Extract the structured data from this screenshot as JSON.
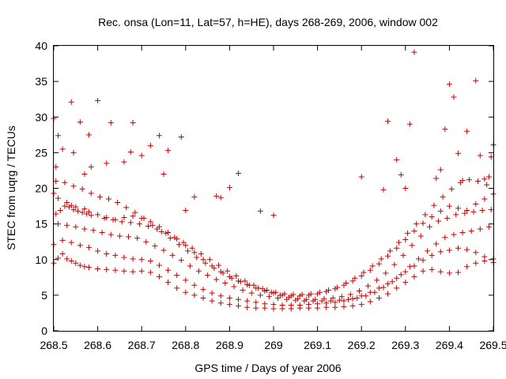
{
  "chart_data": {
    "type": "scatter",
    "title": "Rec. onsa (Lon=11, Lat=57, h=HE), days 268-269, 2006, window 002",
    "xlabel": "GPS time / Days of year 2006",
    "ylabel": "STEC from uqrg / TECUs",
    "xlim": [
      268.5,
      269.5
    ],
    "ylim": [
      0,
      40
    ],
    "xticks": [
      268.5,
      268.6,
      268.7,
      268.8,
      268.9,
      269,
      269.1,
      269.2,
      269.3,
      269.4,
      269.5
    ],
    "xtick_labels": [
      "268.5",
      "268.6",
      "268.7",
      "268.8",
      "268.9",
      "269",
      "269.1",
      "269.2",
      "269.3",
      "269.4",
      "269.5"
    ],
    "yticks": [
      0,
      5,
      10,
      15,
      20,
      25,
      30,
      35,
      40
    ],
    "ytick_labels": [
      "0",
      "5",
      "10",
      "15",
      "20",
      "25",
      "30",
      "35",
      "40"
    ],
    "grid": false,
    "legend": false,
    "marker": "plus",
    "color": "#cc0000",
    "series": [
      {
        "x": [
          268.5,
          268.51,
          268.52,
          268.53,
          268.54,
          268.55,
          268.56,
          268.57,
          268.58,
          268.6,
          268.62,
          268.64,
          268.66,
          268.68,
          268.7,
          268.72,
          268.74,
          268.76,
          268.78,
          268.8,
          268.82,
          268.84,
          268.86,
          268.88,
          268.9,
          268.92,
          268.94,
          268.96,
          268.98,
          269.0,
          269.02,
          269.04,
          269.06,
          269.08,
          269.1,
          269.12,
          269.14,
          269.16,
          269.18,
          269.2,
          269.22,
          269.24,
          269.26,
          269.28,
          269.3,
          269.32,
          269.34,
          269.36,
          269.38,
          269.4,
          269.42,
          269.44,
          269.46,
          269.48,
          269.5,
          268.5,
          268.52,
          268.54,
          268.56,
          268.58,
          268.6,
          268.62,
          268.64,
          268.66,
          268.68,
          268.7,
          268.72,
          268.74,
          268.76,
          268.78,
          268.8,
          268.82,
          268.84,
          268.86,
          268.88,
          268.9,
          268.92,
          268.94,
          268.96,
          268.98,
          269.0,
          269.02,
          269.04,
          269.06,
          269.08,
          269.1,
          269.12,
          269.14,
          269.16,
          269.18,
          269.2,
          269.22,
          269.24,
          269.26,
          269.28,
          269.3,
          269.32,
          269.34,
          269.36,
          269.38,
          269.4,
          269.42,
          269.44,
          269.46,
          269.48,
          269.5,
          268.51,
          268.53,
          268.55,
          268.57,
          268.59,
          268.61,
          268.63,
          268.65,
          268.67,
          268.69,
          268.71,
          268.73,
          268.75,
          268.77,
          268.79,
          268.81,
          268.83,
          268.85,
          268.87,
          268.89,
          268.91,
          268.93,
          268.95,
          268.97,
          268.99,
          269.01,
          269.03,
          269.05,
          269.07,
          269.09,
          269.11,
          269.13,
          269.15,
          269.17,
          269.19,
          269.21,
          269.23,
          269.25,
          269.27,
          269.29,
          269.31,
          269.33,
          269.35,
          269.37,
          269.39,
          269.41,
          269.43,
          269.45,
          269.47,
          269.49,
          268.505,
          268.515,
          268.525,
          268.535,
          268.545,
          268.555,
          268.565,
          268.575,
          268.585,
          268.615,
          268.635,
          268.655,
          268.675,
          268.695,
          268.715,
          268.735,
          268.755,
          268.775,
          268.795,
          268.815,
          268.835,
          268.855,
          268.875,
          268.895,
          268.915,
          268.935,
          268.955,
          268.975,
          268.995,
          269.015,
          269.035,
          269.055,
          269.075,
          269.095,
          269.115,
          269.135,
          269.155,
          269.175,
          269.195,
          269.215,
          269.235,
          269.255,
          269.275,
          269.295,
          269.315,
          269.335,
          269.355,
          269.375,
          269.395,
          269.415,
          269.435,
          269.455,
          269.475,
          269.495,
          268.5,
          268.51,
          268.53,
          268.54,
          268.55,
          268.57,
          268.58,
          268.6,
          268.62,
          268.64,
          268.66,
          268.68,
          268.7,
          268.72,
          268.74,
          268.76,
          268.78,
          268.8,
          268.82,
          268.84,
          268.86,
          268.88,
          268.9,
          268.92,
          268.94,
          268.96,
          268.98,
          269.0,
          269.02,
          269.04,
          269.06,
          269.08,
          269.1,
          269.12,
          269.14,
          269.16,
          269.18,
          269.2,
          269.22,
          269.24,
          269.26,
          269.28,
          269.3,
          269.32,
          269.34,
          269.36,
          269.38,
          269.4,
          269.42,
          269.44,
          269.46,
          269.48,
          269.5,
          268.505,
          268.525,
          268.545,
          268.565,
          268.585,
          268.605,
          268.625,
          268.645,
          268.665,
          268.685,
          268.705,
          268.725,
          268.745,
          268.765,
          268.785,
          268.805,
          268.825,
          268.845,
          268.865,
          268.885,
          268.905,
          268.925,
          268.945,
          268.965,
          268.985,
          269.005,
          269.025,
          269.045,
          269.065,
          269.085,
          269.105,
          269.125,
          269.145,
          269.165,
          269.185,
          269.205,
          269.225,
          269.245,
          269.265,
          269.285,
          269.305,
          269.325,
          269.345,
          269.365,
          269.385,
          269.405,
          269.425,
          269.445,
          269.465,
          269.485,
          268.5,
          268.505,
          268.51,
          268.52,
          268.54,
          268.545,
          268.56,
          268.57,
          268.58,
          268.585,
          268.6,
          268.62,
          268.63,
          268.66,
          268.675,
          268.68,
          268.7,
          268.72,
          268.74,
          268.75,
          268.76,
          268.79,
          268.8,
          268.82,
          268.87,
          268.88,
          268.9,
          268.92,
          268.97,
          269.0,
          269.2,
          269.25,
          269.26,
          269.28,
          269.29,
          269.3,
          269.31,
          269.32,
          269.37,
          269.38,
          269.39,
          269.4,
          269.41,
          269.42,
          269.43,
          269.44,
          269.46,
          269.47,
          269.48,
          269.49,
          269.495,
          269.5
        ],
        "y": [
          9.5,
          10.2,
          10.8,
          10.1,
          9.8,
          9.5,
          9.2,
          9.0,
          8.9,
          8.7,
          8.6,
          8.5,
          8.4,
          8.3,
          8.4,
          8.2,
          7.6,
          6.8,
          6.0,
          5.4,
          5.0,
          4.6,
          4.2,
          3.9,
          3.7,
          3.5,
          3.3,
          3.2,
          3.2,
          3.1,
          3.1,
          3.1,
          3.2,
          3.2,
          3.2,
          3.3,
          3.3,
          3.4,
          3.5,
          3.7,
          4.1,
          4.6,
          5.2,
          6.0,
          6.8,
          7.6,
          8.4,
          8.6,
          8.3,
          8.1,
          8.2,
          9.0,
          9.5,
          9.8,
          9.6,
          12.1,
          12.7,
          12.4,
          12.0,
          11.7,
          11.2,
          10.8,
          10.6,
          10.3,
          10.1,
          10.0,
          9.8,
          9.2,
          8.5,
          7.8,
          7.1,
          6.4,
          5.8,
          5.3,
          4.9,
          4.6,
          4.4,
          4.2,
          4.0,
          3.8,
          3.7,
          3.6,
          3.6,
          3.6,
          3.7,
          3.8,
          3.9,
          4.0,
          4.2,
          4.5,
          4.9,
          5.4,
          6.0,
          6.6,
          7.4,
          8.3,
          9.1,
          9.9,
          10.6,
          11.1,
          11.3,
          11.6,
          11.4,
          11.0,
          10.4,
          10.1,
          15.0,
          14.8,
          14.6,
          14.3,
          14.1,
          13.8,
          13.5,
          13.3,
          13.2,
          13.0,
          12.5,
          11.9,
          11.3,
          10.6,
          9.9,
          9.1,
          8.4,
          7.8,
          7.2,
          6.7,
          6.2,
          5.7,
          5.3,
          5.0,
          4.8,
          4.6,
          4.4,
          4.3,
          4.2,
          4.2,
          4.2,
          4.2,
          4.3,
          4.4,
          4.6,
          4.9,
          5.4,
          6.1,
          6.9,
          7.9,
          9.0,
          10.1,
          11.2,
          12.2,
          13.1,
          13.5,
          13.8,
          14.0,
          14.3,
          14.6,
          16.4,
          16.9,
          17.5,
          17.4,
          17.0,
          16.8,
          16.6,
          16.4,
          16.2,
          15.8,
          15.6,
          15.3,
          15.2,
          15.0,
          14.7,
          14.3,
          13.7,
          13.1,
          12.4,
          11.6,
          10.8,
          10.0,
          9.2,
          8.4,
          7.7,
          7.0,
          6.4,
          5.9,
          5.4,
          5.0,
          4.7,
          4.5,
          4.4,
          4.4,
          4.5,
          4.6,
          4.8,
          5.1,
          5.6,
          6.3,
          7.1,
          8.1,
          9.3,
          10.6,
          12.0,
          13.3,
          14.6,
          15.4,
          15.8,
          16.3,
          16.5,
          16.7,
          16.9,
          17.0,
          19.3,
          18.6,
          18.0,
          17.6,
          17.4,
          17.1,
          16.7,
          16.3,
          15.9,
          15.6,
          15.9,
          16.1,
          15.8,
          15.3,
          14.6,
          13.8,
          12.9,
          12.0,
          11.0,
          10.0,
          9.1,
          8.3,
          7.6,
          7.0,
          6.5,
          6.0,
          5.6,
          5.3,
          5.0,
          4.9,
          4.9,
          5.0,
          5.2,
          5.5,
          5.9,
          6.4,
          7.0,
          7.7,
          8.5,
          9.4,
          10.5,
          11.6,
          12.8,
          14.0,
          15.1,
          16.0,
          16.8,
          17.5,
          17.2,
          16.9,
          17.8,
          18.5,
          19.2,
          21.0,
          20.8,
          20.3,
          19.9,
          19.3,
          18.8,
          18.5,
          18.0,
          17.3,
          16.6,
          15.8,
          14.8,
          13.9,
          13.0,
          12.1,
          11.2,
          10.3,
          9.5,
          8.8,
          8.1,
          7.4,
          6.9,
          6.4,
          6.0,
          5.7,
          5.4,
          5.2,
          5.1,
          5.1,
          5.2,
          5.4,
          5.7,
          6.1,
          6.7,
          7.4,
          8.2,
          9.1,
          10.1,
          11.2,
          12.4,
          13.7,
          15.0,
          16.3,
          17.6,
          18.8,
          19.9,
          20.8,
          21.2,
          21.0,
          20.5,
          29.8,
          23.0,
          27.4,
          25.5,
          32.1,
          25.0,
          29.3,
          22.0,
          27.5,
          23.0,
          32.3,
          23.5,
          29.2,
          23.7,
          25.1,
          29.2,
          24.6,
          26.0,
          27.4,
          22.0,
          25.3,
          27.2,
          16.9,
          18.8,
          18.9,
          18.7,
          20.1,
          22.1,
          16.8,
          16.2,
          21.6,
          19.8,
          29.4,
          24.0,
          21.9,
          20.0,
          29.0,
          39.1,
          21.4,
          22.6,
          28.3,
          34.6,
          32.8,
          24.9,
          21.1,
          28.0,
          35.1,
          24.6,
          21.3,
          21.6,
          24.4,
          26.1
        ]
      }
    ]
  }
}
